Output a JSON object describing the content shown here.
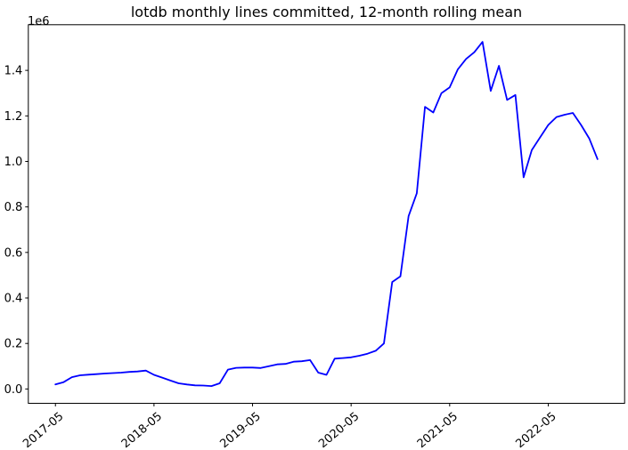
{
  "figure": {
    "title": "lotdb monthly lines committed, 12-month rolling mean",
    "y_offset_label": "1e6"
  },
  "colors": {
    "line": "#0000ff",
    "axes": "#000000",
    "background": "#ffffff"
  },
  "chart_data": {
    "type": "line",
    "title": "lotdb monthly lines committed, 12-month rolling mean",
    "xlabel": "",
    "ylabel": "",
    "y_units_note": "values in units of 1e6 lines (y-axis offset label 1e6)",
    "grid": false,
    "legend": "none",
    "x": [
      "2017-05",
      "2017-06",
      "2017-07",
      "2017-08",
      "2017-09",
      "2017-10",
      "2017-11",
      "2017-12",
      "2018-01",
      "2018-02",
      "2018-03",
      "2018-04",
      "2018-05",
      "2018-06",
      "2018-07",
      "2018-08",
      "2018-09",
      "2018-10",
      "2018-11",
      "2018-12",
      "2019-01",
      "2019-02",
      "2019-03",
      "2019-04",
      "2019-05",
      "2019-06",
      "2019-07",
      "2019-08",
      "2019-09",
      "2019-10",
      "2019-11",
      "2019-12",
      "2020-01",
      "2020-02",
      "2020-03",
      "2020-04",
      "2020-05",
      "2020-06",
      "2020-07",
      "2020-08",
      "2020-09",
      "2020-10",
      "2020-11",
      "2020-12",
      "2021-01",
      "2021-02",
      "2021-03",
      "2021-04",
      "2021-05",
      "2021-06",
      "2021-07",
      "2021-08",
      "2021-09",
      "2021-10",
      "2021-11",
      "2021-12",
      "2022-01",
      "2022-02",
      "2022-03",
      "2022-04",
      "2022-05",
      "2022-06",
      "2022-07",
      "2022-08",
      "2022-09",
      "2022-10",
      "2022-11"
    ],
    "series": [
      {
        "name": "12-month rolling mean",
        "color": "#0000ff",
        "values": [
          0.02,
          0.03,
          0.052,
          0.06,
          0.063,
          0.065,
          0.068,
          0.07,
          0.072,
          0.075,
          0.077,
          0.081,
          0.062,
          0.05,
          0.037,
          0.025,
          0.02,
          0.016,
          0.015,
          0.013,
          0.025,
          0.085,
          0.093,
          0.094,
          0.094,
          0.092,
          0.1,
          0.108,
          0.11,
          0.12,
          0.122,
          0.127,
          0.072,
          0.062,
          0.133,
          0.136,
          0.139,
          0.146,
          0.155,
          0.168,
          0.2,
          0.47,
          0.495,
          0.76,
          0.86,
          1.24,
          1.215,
          1.3,
          1.325,
          1.405,
          1.45,
          1.48,
          1.525,
          1.31,
          1.42,
          1.27,
          1.292,
          0.93,
          1.05,
          1.105,
          1.16,
          1.195,
          1.205,
          1.213,
          1.16,
          1.1,
          1.01
        ]
      }
    ],
    "xticks": [
      "2017-05",
      "2018-05",
      "2019-05",
      "2020-05",
      "2021-05",
      "2022-05"
    ],
    "yticks": [
      0.0,
      0.2,
      0.4,
      0.6,
      0.8,
      1.0,
      1.2,
      1.4
    ],
    "ytick_labels": [
      "0.0",
      "0.2",
      "0.4",
      "0.6",
      "0.8",
      "1.0",
      "1.2",
      "1.4"
    ],
    "ylim": [
      -0.063,
      1.6006
    ],
    "x_margin_fraction": 0.05
  }
}
